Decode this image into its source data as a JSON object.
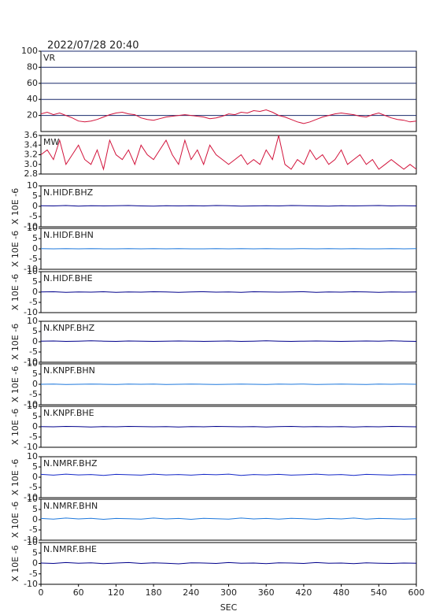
{
  "timestamp": "2022/07/28 20:40",
  "chart_data": [
    {
      "type": "line",
      "title": "VR",
      "xlim": [
        0,
        600
      ],
      "ylim": [
        0,
        100
      ],
      "yticks": [
        20,
        40,
        60,
        80,
        100
      ],
      "grid": true,
      "x": [
        0,
        10,
        20,
        30,
        40,
        50,
        60,
        70,
        80,
        90,
        100,
        110,
        120,
        130,
        140,
        150,
        160,
        170,
        180,
        190,
        200,
        210,
        220,
        230,
        240,
        250,
        260,
        270,
        280,
        290,
        300,
        310,
        320,
        330,
        340,
        350,
        360,
        370,
        380,
        390,
        400,
        410,
        420,
        430,
        440,
        450,
        460,
        470,
        480,
        490,
        500,
        510,
        520,
        530,
        540,
        550,
        560,
        570,
        580,
        590,
        600
      ],
      "series": [
        {
          "color": "#d2143c",
          "values": [
            22,
            24,
            21,
            23,
            20,
            17,
            13,
            12,
            13,
            15,
            18,
            21,
            23,
            24,
            22,
            21,
            17,
            15,
            14,
            16,
            18,
            19,
            20,
            21,
            20,
            19,
            18,
            16,
            17,
            19,
            22,
            21,
            24,
            23,
            26,
            25,
            27,
            24,
            20,
            18,
            15,
            12,
            10,
            12,
            15,
            18,
            20,
            22,
            23,
            22,
            21,
            19,
            18,
            21,
            23,
            20,
            17,
            15,
            14,
            12,
            13
          ]
        }
      ]
    },
    {
      "type": "line",
      "title": "MW",
      "xlim": [
        0,
        600
      ],
      "ylim": [
        2.8,
        3.6
      ],
      "yticks": [
        2.8,
        {
          "value": 3,
          "label": "3.0"
        },
        3.2,
        3.4,
        3.6
      ],
      "grid": false,
      "x": [
        0,
        10,
        20,
        30,
        40,
        50,
        60,
        70,
        80,
        90,
        100,
        110,
        120,
        130,
        140,
        150,
        160,
        170,
        180,
        190,
        200,
        210,
        220,
        230,
        240,
        250,
        260,
        270,
        280,
        290,
        300,
        310,
        320,
        330,
        340,
        350,
        360,
        370,
        380,
        390,
        400,
        410,
        420,
        430,
        440,
        450,
        460,
        470,
        480,
        490,
        500,
        510,
        520,
        530,
        540,
        550,
        560,
        570,
        580,
        590,
        600
      ],
      "series": [
        {
          "color": "#d2143c",
          "values": [
            3.2,
            3.3,
            3.1,
            3.5,
            3.0,
            3.2,
            3.4,
            3.1,
            3.0,
            3.3,
            2.9,
            3.5,
            3.2,
            3.1,
            3.3,
            3.0,
            3.4,
            3.2,
            3.1,
            3.3,
            3.5,
            3.2,
            3.0,
            3.5,
            3.1,
            3.3,
            3.0,
            3.4,
            3.2,
            3.1,
            3.0,
            3.1,
            3.2,
            3.0,
            3.1,
            3.0,
            3.3,
            3.1,
            3.6,
            3.0,
            2.9,
            3.1,
            3.0,
            3.3,
            3.1,
            3.2,
            3.0,
            3.1,
            3.3,
            3.0,
            3.1,
            3.2,
            3.0,
            3.1,
            2.9,
            3.0,
            3.1,
            3.0,
            2.9,
            3.0,
            2.9
          ]
        }
      ]
    },
    {
      "type": "line",
      "title": "N.HIDF.BHZ",
      "ylabel": "X 10E -6",
      "xlim": [
        0,
        600
      ],
      "ylim": [
        -10,
        10
      ],
      "yticks": [
        -10,
        -5,
        0,
        5,
        10
      ],
      "grid": false,
      "x": [
        0,
        20,
        40,
        60,
        80,
        100,
        120,
        140,
        160,
        180,
        200,
        220,
        240,
        260,
        280,
        300,
        320,
        340,
        360,
        380,
        400,
        420,
        440,
        460,
        480,
        500,
        520,
        540,
        560,
        580,
        600
      ],
      "series": [
        {
          "color": "#00008b",
          "values": [
            0.3,
            0.2,
            0.4,
            0.1,
            0.3,
            0.2,
            0.3,
            0.4,
            0.2,
            0.1,
            0.3,
            0.2,
            0.3,
            0.2,
            0.4,
            0.3,
            0.1,
            0.2,
            0.3,
            0.2,
            0.4,
            0.3,
            0.2,
            0.1,
            0.3,
            0.2,
            0.3,
            0.4,
            0.2,
            0.3,
            0.2
          ]
        }
      ]
    },
    {
      "type": "line",
      "title": "N.HIDF.BHN",
      "ylabel": "X 10E -6",
      "xlim": [
        0,
        600
      ],
      "ylim": [
        -10,
        10
      ],
      "yticks": [
        -10,
        -5,
        0,
        5,
        10
      ],
      "grid": false,
      "x": [
        0,
        20,
        40,
        60,
        80,
        100,
        120,
        140,
        160,
        180,
        200,
        220,
        240,
        260,
        280,
        300,
        320,
        340,
        360,
        380,
        400,
        420,
        440,
        460,
        480,
        500,
        520,
        540,
        560,
        580,
        600
      ],
      "series": [
        {
          "color": "#1e78dc",
          "values": [
            0.1,
            0.0,
            0.1,
            0.0,
            0.1,
            0.0,
            0.0,
            0.1,
            0.0,
            0.1,
            0.0,
            0.1,
            0.0,
            0.0,
            0.1,
            0.0,
            0.1,
            0.0,
            0.1,
            0.0,
            0.0,
            0.1,
            0.0,
            0.1,
            0.0,
            0.1,
            0.0,
            0.0,
            0.1,
            0.0,
            0.1
          ]
        }
      ]
    },
    {
      "type": "line",
      "title": "N.HIDF.BHE",
      "ylabel": "X 10E -6",
      "xlim": [
        0,
        600
      ],
      "ylim": [
        -10,
        10
      ],
      "yticks": [
        -10,
        -5,
        0,
        5,
        10
      ],
      "grid": false,
      "x": [
        0,
        20,
        40,
        60,
        80,
        100,
        120,
        140,
        160,
        180,
        200,
        220,
        240,
        260,
        280,
        300,
        320,
        340,
        360,
        380,
        400,
        420,
        440,
        460,
        480,
        500,
        520,
        540,
        560,
        580,
        600
      ],
      "series": [
        {
          "color": "#00008b",
          "values": [
            0.1,
            0.2,
            -0.1,
            0.1,
            0.0,
            0.2,
            -0.1,
            0.1,
            0.0,
            0.2,
            0.1,
            -0.1,
            0.1,
            0.2,
            0.0,
            0.1,
            -0.1,
            0.2,
            0.1,
            0.0,
            0.1,
            0.2,
            -0.1,
            0.1,
            0.0,
            0.2,
            0.1,
            -0.1,
            0.1,
            0.0,
            0.1
          ]
        }
      ]
    },
    {
      "type": "line",
      "title": "N.KNPF.BHZ",
      "ylabel": "X 10E -6",
      "xlim": [
        0,
        600
      ],
      "ylim": [
        -10,
        10
      ],
      "yticks": [
        -10,
        -5,
        0,
        5,
        10
      ],
      "grid": false,
      "x": [
        0,
        20,
        40,
        60,
        80,
        100,
        120,
        140,
        160,
        180,
        200,
        220,
        240,
        260,
        280,
        300,
        320,
        340,
        360,
        380,
        400,
        420,
        440,
        460,
        480,
        500,
        520,
        540,
        560,
        580,
        600
      ],
      "series": [
        {
          "color": "#00008b",
          "values": [
            0.3,
            0.4,
            0.2,
            0.3,
            0.5,
            0.3,
            0.2,
            0.4,
            0.3,
            0.2,
            0.3,
            0.4,
            0.3,
            0.2,
            0.3,
            0.4,
            0.2,
            0.3,
            0.5,
            0.3,
            0.2,
            0.3,
            0.4,
            0.3,
            0.2,
            0.3,
            0.4,
            0.3,
            0.5,
            0.3,
            0.2
          ]
        }
      ]
    },
    {
      "type": "line",
      "title": "N.KNPF.BHN",
      "ylabel": "X 10E -6",
      "xlim": [
        0,
        600
      ],
      "ylim": [
        -10,
        10
      ],
      "yticks": [
        -10,
        -5,
        0,
        5,
        10
      ],
      "grid": false,
      "x": [
        0,
        20,
        40,
        60,
        80,
        100,
        120,
        140,
        160,
        180,
        200,
        220,
        240,
        260,
        280,
        300,
        320,
        340,
        360,
        380,
        400,
        420,
        440,
        460,
        480,
        500,
        520,
        540,
        560,
        580,
        600
      ],
      "series": [
        {
          "color": "#1e78dc",
          "values": [
            0.0,
            0.1,
            -0.1,
            0.0,
            0.1,
            0.0,
            -0.1,
            0.1,
            0.0,
            0.1,
            -0.1,
            0.0,
            0.1,
            0.0,
            -0.1,
            0.0,
            0.1,
            0.0,
            -0.1,
            0.1,
            0.0,
            0.1,
            -0.1,
            0.0,
            0.1,
            0.0,
            -0.1,
            0.1,
            0.0,
            0.1,
            0.0
          ]
        }
      ]
    },
    {
      "type": "line",
      "title": "N.KNPF.BHE",
      "ylabel": "X 10E -6",
      "xlim": [
        0,
        600
      ],
      "ylim": [
        -10,
        10
      ],
      "yticks": [
        -10,
        -5,
        0,
        5,
        10
      ],
      "grid": false,
      "x": [
        0,
        20,
        40,
        60,
        80,
        100,
        120,
        140,
        160,
        180,
        200,
        220,
        240,
        260,
        280,
        300,
        320,
        340,
        360,
        380,
        400,
        420,
        440,
        460,
        480,
        500,
        520,
        540,
        560,
        580,
        600
      ],
      "series": [
        {
          "color": "#00008b",
          "values": [
            0.1,
            0.0,
            0.2,
            0.1,
            -0.1,
            0.1,
            0.0,
            0.2,
            0.1,
            0.0,
            0.1,
            -0.1,
            0.1,
            0.0,
            0.2,
            0.1,
            0.0,
            0.1,
            -0.1,
            0.1,
            0.2,
            0.0,
            0.1,
            0.0,
            0.1,
            -0.1,
            0.1,
            0.0,
            0.2,
            0.1,
            0.0
          ]
        }
      ]
    },
    {
      "type": "line",
      "title": "N.NMRF.BHZ",
      "ylabel": "X 10E -6",
      "xlim": [
        0,
        600
      ],
      "ylim": [
        -10,
        10
      ],
      "yticks": [
        -10,
        -5,
        0,
        5,
        10
      ],
      "grid": false,
      "x": [
        0,
        20,
        40,
        60,
        80,
        100,
        120,
        140,
        160,
        180,
        200,
        220,
        240,
        260,
        280,
        300,
        320,
        340,
        360,
        380,
        400,
        420,
        440,
        460,
        480,
        500,
        520,
        540,
        560,
        580,
        600
      ],
      "series": [
        {
          "color": "#1428c8",
          "values": [
            1.4,
            1.0,
            1.5,
            1.1,
            1.3,
            0.9,
            1.4,
            1.2,
            1.0,
            1.5,
            1.1,
            1.3,
            1.0,
            1.4,
            1.2,
            1.5,
            0.9,
            1.3,
            1.1,
            1.4,
            1.0,
            1.2,
            1.5,
            1.1,
            1.3,
            0.9,
            1.4,
            1.2,
            1.0,
            1.3,
            1.2
          ]
        }
      ]
    },
    {
      "type": "line",
      "title": "N.NMRF.BHN",
      "ylabel": "X 10E -6",
      "xlim": [
        0,
        600
      ],
      "ylim": [
        -10,
        10
      ],
      "yticks": [
        -10,
        -5,
        0,
        5,
        10
      ],
      "grid": false,
      "x": [
        0,
        20,
        40,
        60,
        80,
        100,
        120,
        140,
        160,
        180,
        200,
        220,
        240,
        260,
        280,
        300,
        320,
        340,
        360,
        380,
        400,
        420,
        440,
        460,
        480,
        500,
        520,
        540,
        560,
        580,
        600
      ],
      "series": [
        {
          "color": "#1e78dc",
          "values": [
            0.6,
            0.3,
            0.8,
            0.4,
            0.7,
            0.2,
            0.6,
            0.5,
            0.3,
            0.8,
            0.4,
            0.6,
            0.2,
            0.7,
            0.5,
            0.3,
            0.8,
            0.4,
            0.6,
            0.3,
            0.7,
            0.5,
            0.2,
            0.6,
            0.4,
            0.8,
            0.3,
            0.6,
            0.5,
            0.3,
            0.5
          ]
        }
      ]
    },
    {
      "type": "line",
      "title": "N.NMRF.BHE",
      "ylabel": "X 10E -6",
      "xlabel": "SEC",
      "xlim": [
        0,
        600
      ],
      "ylim": [
        -10,
        10
      ],
      "yticks": [
        -10,
        -5,
        0,
        5,
        10
      ],
      "xticks": [
        0,
        60,
        120,
        180,
        240,
        300,
        360,
        420,
        480,
        540,
        600
      ],
      "grid": false,
      "x": [
        0,
        20,
        40,
        60,
        80,
        100,
        120,
        140,
        160,
        180,
        200,
        220,
        240,
        260,
        280,
        300,
        320,
        340,
        360,
        380,
        400,
        420,
        440,
        460,
        480,
        500,
        520,
        540,
        560,
        580,
        600
      ],
      "series": [
        {
          "color": "#00008b",
          "values": [
            0.2,
            0.0,
            0.4,
            0.1,
            0.3,
            -0.1,
            0.2,
            0.4,
            0.0,
            0.3,
            0.1,
            -0.2,
            0.3,
            0.2,
            0.0,
            0.4,
            0.1,
            0.2,
            -0.1,
            0.3,
            0.2,
            0.0,
            0.4,
            0.1,
            0.2,
            -0.1,
            0.3,
            0.1,
            0.0,
            0.2,
            0.1
          ]
        }
      ]
    }
  ]
}
